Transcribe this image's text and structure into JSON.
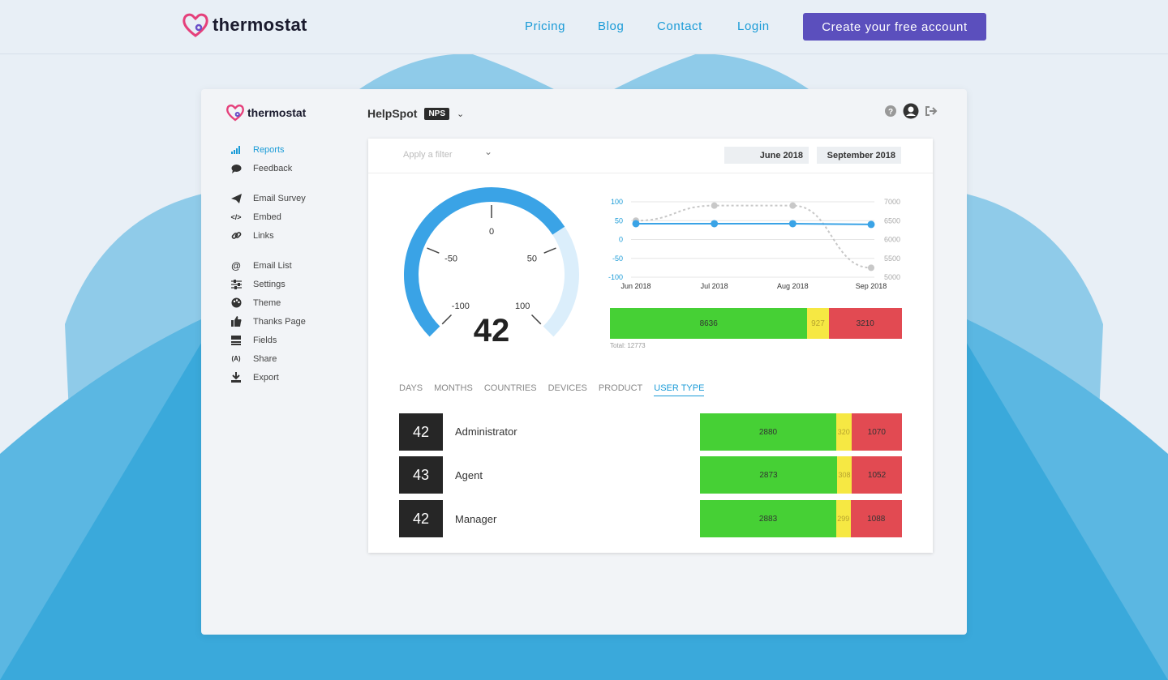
{
  "site": {
    "logo": "thermostat",
    "nav": [
      "Pricing",
      "Blog",
      "Contact",
      "Login"
    ],
    "cta": "Create your free account"
  },
  "app": {
    "logo": "thermostat",
    "project": "HelpSpot",
    "badge": "NPS",
    "sidebar": [
      {
        "label": "Reports",
        "icon": "bar-chart-icon",
        "active": true
      },
      {
        "label": "Feedback",
        "icon": "speech-bubble-icon"
      },
      {
        "label": "Email Survey",
        "icon": "paper-plane-icon"
      },
      {
        "label": "Embed",
        "icon": "code-icon"
      },
      {
        "label": "Links",
        "icon": "link-icon"
      },
      {
        "label": "Email List",
        "icon": "at-sign-icon"
      },
      {
        "label": "Settings",
        "icon": "sliders-icon"
      },
      {
        "label": "Theme",
        "icon": "palette-icon"
      },
      {
        "label": "Thanks Page",
        "icon": "thumbs-up-icon"
      },
      {
        "label": "Fields",
        "icon": "fields-icon"
      },
      {
        "label": "Share",
        "icon": "broadcast-icon"
      },
      {
        "label": "Export",
        "icon": "download-icon"
      }
    ],
    "filter_placeholder": "Apply a filter",
    "date_from": "June 2018",
    "date_to": "September 2018",
    "gauge": {
      "value": "42",
      "ticks": [
        "-100",
        "-50",
        "0",
        "50",
        "100"
      ]
    },
    "line_chart": {
      "categories": [
        "Jun 2018",
        "Jul 2018",
        "Aug 2018",
        "Sep 2018"
      ],
      "left_axis": [
        "100",
        "50",
        "0",
        "-50",
        "-100"
      ],
      "right_axis": [
        "7000",
        "6500",
        "6000",
        "5500",
        "5000"
      ],
      "nps": [
        42,
        42,
        42,
        40
      ],
      "responses": [
        6500,
        6900,
        6900,
        5250
      ]
    },
    "totals_bar": {
      "promoters": "8636",
      "passives": "927",
      "detractors": "3210",
      "total": "Total: 12773"
    },
    "tabs": [
      "DAYS",
      "MONTHS",
      "COUNTRIES",
      "DEVICES",
      "PRODUCT",
      "USER TYPE"
    ],
    "active_tab": "USER TYPE",
    "rows": [
      {
        "score": "42",
        "label": "Administrator",
        "promoters": "2880",
        "passives": "320",
        "detractors": "1070"
      },
      {
        "score": "43",
        "label": "Agent",
        "promoters": "2873",
        "passives": "308",
        "detractors": "1052"
      },
      {
        "score": "42",
        "label": "Manager",
        "promoters": "2883",
        "passives": "299",
        "detractors": "1088"
      }
    ],
    "colors": {
      "promoter": "#46d035",
      "passive": "#f6e843",
      "detractor": "#e24a52",
      "accent": "#1a9bd7",
      "cta": "#5b4fbd"
    }
  }
}
